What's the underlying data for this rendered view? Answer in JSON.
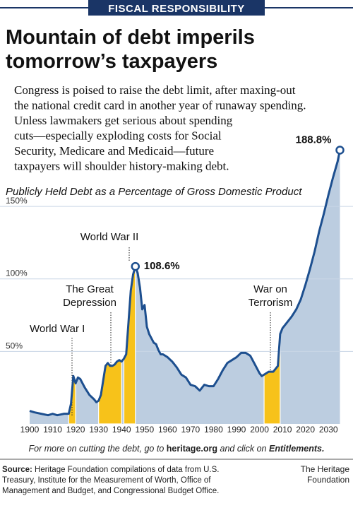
{
  "chart_data": {
    "type": "area",
    "kicker": "FISCAL RESPONSIBILITY",
    "title_lines": [
      "Mountain of debt imperils",
      "tomorrow’s taxpayers"
    ],
    "intro": [
      "Congress is poised to raise the debt limit, after maxing-out",
      "the national credit card in another year of runaway spending.",
      "Unless lawmakers get serious about spending",
      "cuts—especially exploding costs for Social",
      "Security, Medicare and Medicaid—future",
      "taxpayers will shoulder history-making debt."
    ],
    "subtitle": "Publicly Held Debt as a Percentage of Gross Domestic Product",
    "x": [
      1900,
      1902,
      1905,
      1908,
      1910,
      1912,
      1915,
      1917,
      1918,
      1919,
      1920,
      1921,
      1922,
      1924,
      1926,
      1928,
      1929,
      1930,
      1931,
      1932,
      1933,
      1934,
      1935,
      1936,
      1937,
      1938,
      1939,
      1940,
      1941,
      1942,
      1943,
      1944,
      1945,
      1946,
      1947,
      1948,
      1949,
      1950,
      1951,
      1952,
      1953,
      1954,
      1955,
      1956,
      1957,
      1958,
      1959,
      1960,
      1962,
      1964,
      1966,
      1968,
      1970,
      1972,
      1974,
      1976,
      1978,
      1980,
      1982,
      1984,
      1986,
      1988,
      1990,
      1992,
      1994,
      1996,
      1998,
      2000,
      2001,
      2002,
      2004,
      2006,
      2008,
      2009,
      2010,
      2012,
      2014,
      2016,
      2018,
      2020,
      2022,
      2024,
      2026,
      2028,
      2030,
      2032,
      2034,
      2035
    ],
    "values": [
      9,
      8,
      7,
      6,
      7,
      6,
      7,
      7,
      14,
      33,
      28,
      32,
      31,
      25,
      20,
      17,
      15,
      16,
      20,
      30,
      40,
      42,
      40,
      40,
      41,
      43,
      44,
      43,
      45,
      48,
      70,
      92,
      103,
      108.6,
      104,
      94,
      79,
      82,
      67,
      62,
      59,
      56,
      55,
      51,
      48,
      48,
      47,
      46,
      43,
      39,
      34,
      32,
      27,
      26,
      23,
      27,
      26,
      26,
      31,
      37,
      42,
      44,
      46,
      49,
      49,
      47,
      41,
      35,
      33,
      34,
      36,
      36,
      40,
      62,
      66,
      70,
      74,
      79,
      86,
      96,
      107,
      119,
      133,
      145,
      158,
      170,
      181,
      188.8
    ],
    "value_labels": [
      null,
      null,
      null,
      null,
      null,
      null,
      null,
      null,
      null,
      null,
      null,
      null,
      null,
      null,
      null,
      null,
      null,
      null,
      null,
      null,
      null,
      null,
      null,
      null,
      null,
      null,
      null,
      null,
      null,
      null,
      null,
      null,
      null,
      "108.6%",
      null,
      null,
      null,
      null,
      null,
      null,
      null,
      null,
      null,
      null,
      null,
      null,
      null,
      null,
      null,
      null,
      null,
      null,
      null,
      null,
      null,
      null,
      null,
      null,
      null,
      null,
      null,
      null,
      null,
      null,
      null,
      null,
      null,
      null,
      null,
      null,
      null,
      null,
      null,
      null,
      null,
      null,
      null,
      null,
      null,
      null,
      null,
      null,
      null,
      null,
      null,
      null,
      null,
      "188.8%"
    ],
    "color": "#bccde0",
    "line_color": "#1d4f8f",
    "highlight_color": "#f7c21a",
    "highlights": [
      {
        "label_lines": [
          "World War I"
        ],
        "start": 1917,
        "end": 1920
      },
      {
        "label_lines": [
          "The Great",
          "Depression"
        ],
        "start": 1930,
        "end": 1940
      },
      {
        "label_lines": [
          "World War II"
        ],
        "start": 1941,
        "end": 1946
      },
      {
        "label_lines": [
          "War on",
          "Terrorism"
        ],
        "start": 2002,
        "end": 2009
      }
    ],
    "xlim": [
      1898,
      2037
    ],
    "ylim": [
      0,
      190
    ],
    "xticks": [
      1900,
      1910,
      1920,
      1930,
      1940,
      1950,
      1960,
      1970,
      1980,
      1990,
      2000,
      2010,
      2020,
      2030
    ],
    "yticks": [
      {
        "value": 50,
        "label": "50%"
      },
      {
        "value": 100,
        "label": "100%"
      },
      {
        "value": 150,
        "label": "150%"
      }
    ],
    "grid": true,
    "note_parts": [
      "For more on cutting the debt, go to ",
      "heritage.org",
      " and click on ",
      "Entitlements."
    ],
    "source_label": "Source:",
    "source_lines": [
      " Heritage Foundation compilations of data from U.S.",
      "Treasury, Institute for the Measurement of Worth, Office of",
      "Management and Budget, and Congressional Budget Office."
    ],
    "credit_lines": [
      "The Heritage",
      "Foundation"
    ]
  }
}
